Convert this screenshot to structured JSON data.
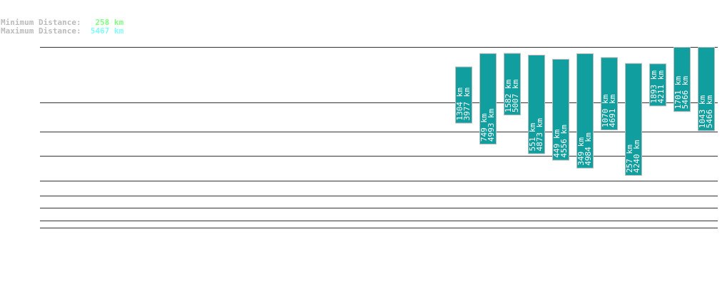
{
  "summary": {
    "min_label": "Minimum Distance:",
    "min_value": "258 km",
    "max_label": "Maximum Distance:",
    "max_value": "5467 km",
    "min_color": "#80ff80",
    "max_color": "#80ffff"
  },
  "chart_data": {
    "type": "bar",
    "title": "",
    "bar_color": "#119e9e",
    "unit": "km",
    "series": [
      {
        "min": 1304,
        "max": 3977
      },
      {
        "min": 749,
        "max": 4993
      },
      {
        "min": 1582,
        "max": 5007
      },
      {
        "min": 551,
        "max": 4873
      },
      {
        "min": 449,
        "max": 4556
      },
      {
        "min": 349,
        "max": 4984
      },
      {
        "min": 1070,
        "max": 4691
      },
      {
        "min": 257,
        "max": 4240
      },
      {
        "min": 1893,
        "max": 4211
      },
      {
        "min": 1701,
        "max": 5466
      },
      {
        "min": 1043,
        "max": 5466
      }
    ]
  }
}
